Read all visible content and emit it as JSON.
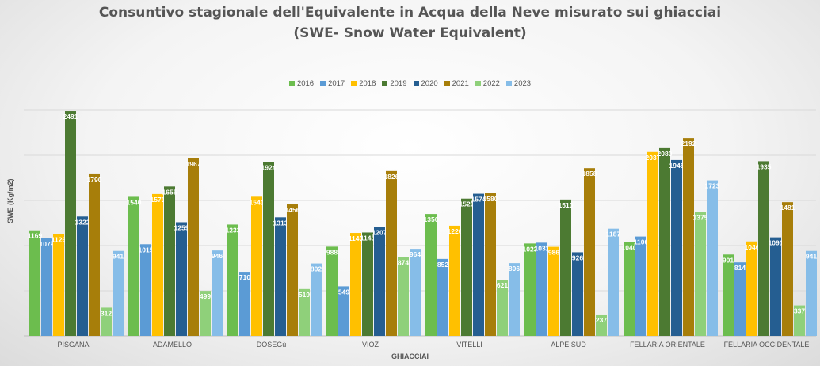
{
  "chart_data": {
    "type": "bar",
    "title": "Consuntivo stagionale dell'Equivalente in Acqua della Neve misurato sui ghiacciai",
    "subtitle": "(SWE- Snow Water Equivalent)",
    "xlabel": "GHIACCIAI",
    "ylabel": "SWE (Kg/m2)",
    "ylim": [
      0,
      2500
    ],
    "grid": true,
    "legend_position": "top",
    "categories": [
      "PISGANA",
      "ADAMELLO",
      "DOSEGù",
      "VIOZ",
      "VITELLI",
      "ALPE SUD",
      "FELLARIA ORIENTALE",
      "FELLARIA OCCIDENTALE"
    ],
    "series": [
      {
        "name": "2016",
        "color": "#6cbd4e",
        "values": [
          1169,
          1540,
          1233,
          988,
          1350,
          1023,
          1040,
          901
        ]
      },
      {
        "name": "2017",
        "color": "#5b9bd5",
        "values": [
          1079,
          1015,
          710,
          549,
          852,
          1032,
          1100,
          814
        ]
      },
      {
        "name": "2018",
        "color": "#ffc000",
        "values": [
          1126,
          1571,
          1541,
          1140,
          1220,
          986,
          2037,
          1046
        ]
      },
      {
        "name": "2019",
        "color": "#4c7a32",
        "values": [
          2491,
          1655,
          1924,
          1145,
          1520,
          1510,
          2080,
          1935
        ]
      },
      {
        "name": "2020",
        "color": "#255e91",
        "values": [
          1322,
          1259,
          1313,
          1207,
          1574,
          926,
          1948,
          1091
        ]
      },
      {
        "name": "2021",
        "color": "#a77e0a",
        "values": [
          1790,
          1967,
          1456,
          1826,
          1580,
          1858,
          2192,
          1481
        ]
      },
      {
        "name": "2022",
        "color": "#8fd07a",
        "values": [
          312,
          499,
          519,
          874,
          621,
          237,
          1375,
          337
        ]
      },
      {
        "name": "2023",
        "color": "#86bde8",
        "values": [
          941,
          946,
          802,
          964,
          806,
          1187,
          1723,
          941
        ]
      }
    ]
  }
}
